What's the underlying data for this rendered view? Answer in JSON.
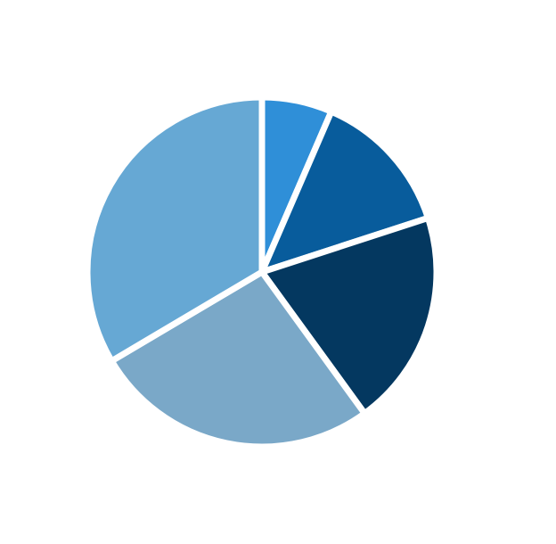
{
  "chart_data": {
    "type": "pie",
    "title": "",
    "categories": [
      "",
      "",
      "",
      "",
      ""
    ],
    "values": [
      6.5,
      13.5,
      20.0,
      26.5,
      33.5
    ],
    "colors": [
      "#2F8FD8",
      "#085C9C",
      "#043860",
      "#7AA8C8",
      "#66A8D4"
    ],
    "start_angle_deg": 0,
    "direction": "clockwise",
    "legend": "none",
    "data_labels": "none"
  }
}
